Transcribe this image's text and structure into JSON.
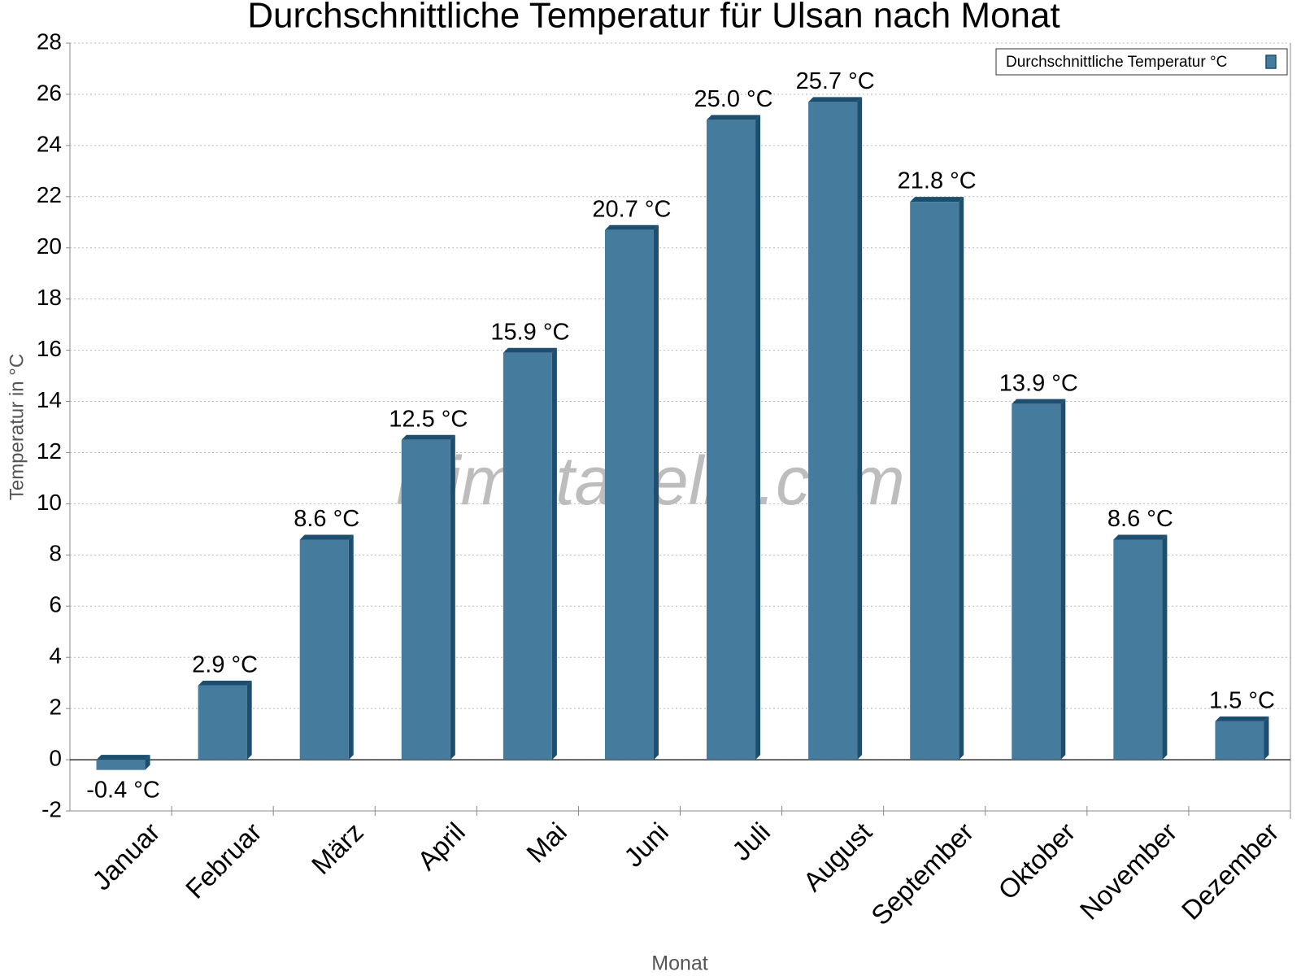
{
  "chart_data": {
    "type": "bar",
    "title": "Durchschnittliche Temperatur für Ulsan nach Monat",
    "x_label": "Monat",
    "y_label": "Temperatur in °C",
    "watermark": "klimatabelle.com",
    "categories": [
      "Januar",
      "Februar",
      "März",
      "April",
      "Mai",
      "Juni",
      "Juli",
      "August",
      "September",
      "Oktober",
      "November",
      "Dezember"
    ],
    "series": [
      {
        "name": "Durchschnittliche Temperatur °C",
        "color": "#457b9d",
        "values": [
          -0.4,
          2.9,
          8.6,
          12.5,
          15.9,
          20.7,
          25.0,
          25.7,
          21.8,
          13.9,
          8.6,
          1.5
        ],
        "value_labels": [
          "-0.4 °C",
          "2.9 °C",
          "8.6 °C",
          "12.5 °C",
          "15.9 °C",
          "20.7 °C",
          "25.0 °C",
          "25.7 °C",
          "21.8 °C",
          "13.9 °C",
          "8.6 °C",
          "1.5 °C"
        ]
      }
    ],
    "ylim": [
      -2,
      28
    ],
    "yticks": [
      -2,
      0,
      2,
      4,
      6,
      8,
      10,
      12,
      14,
      16,
      18,
      20,
      22,
      24,
      26,
      28
    ],
    "grid": true,
    "legend": "top-right"
  }
}
